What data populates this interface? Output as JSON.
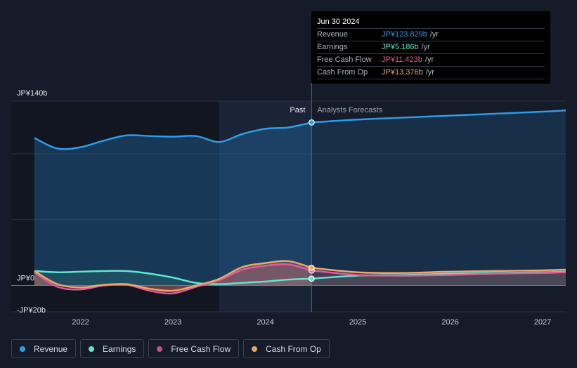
{
  "tooltip": {
    "date": "Jun 30 2024",
    "rows": [
      {
        "label": "Revenue",
        "value": "JP¥123.829b",
        "unit": "/yr",
        "color": "#2f9ce6"
      },
      {
        "label": "Earnings",
        "value": "JP¥5.186b",
        "unit": "/yr",
        "color": "#5ee6cf"
      },
      {
        "label": "Free Cash Flow",
        "value": "JP¥11.423b",
        "unit": "/yr",
        "color": "#e05b9b"
      },
      {
        "label": "Cash From Op",
        "value": "JP¥13.376b",
        "unit": "/yr",
        "color": "#eda862"
      }
    ]
  },
  "labels": {
    "past": "Past",
    "forecast": "Analysts Forecasts"
  },
  "legend": [
    {
      "label": "Revenue",
      "color": "#2f9ce6"
    },
    {
      "label": "Earnings",
      "color": "#5ee6cf"
    },
    {
      "label": "Free Cash Flow",
      "color": "#c94d8a"
    },
    {
      "label": "Cash From Op",
      "color": "#e8a25d"
    }
  ],
  "chart_data": {
    "type": "line",
    "ylim": [
      -20,
      140
    ],
    "y_ticks": [
      {
        "value": 140,
        "label": "JP¥140b"
      },
      {
        "value": 0,
        "label": "JP¥0"
      },
      {
        "value": -20,
        "label": "-JP¥20b"
      }
    ],
    "x_ticks": [
      {
        "value": 2022,
        "label": "2022"
      },
      {
        "value": 2023,
        "label": "2023"
      },
      {
        "value": 2024,
        "label": "2024"
      },
      {
        "value": 2025,
        "label": "2025"
      },
      {
        "value": 2026,
        "label": "2026"
      },
      {
        "value": 2027,
        "label": "2027"
      }
    ],
    "xlim": [
      2021.25,
      2027.25
    ],
    "past_end": 2024.5,
    "highlight_start": 2023.5,
    "series": [
      {
        "name": "Revenue",
        "color": "#2f9ce6",
        "points": [
          [
            2021.5,
            112
          ],
          [
            2021.75,
            104
          ],
          [
            2022.0,
            105
          ],
          [
            2022.25,
            110
          ],
          [
            2022.5,
            114
          ],
          [
            2022.75,
            113.5
          ],
          [
            2023.0,
            113
          ],
          [
            2023.25,
            113.5
          ],
          [
            2023.5,
            109
          ],
          [
            2023.75,
            115
          ],
          [
            2024.0,
            119
          ],
          [
            2024.25,
            120
          ],
          [
            2024.5,
            123.8
          ]
        ],
        "forecast": [
          [
            2024.5,
            123.8
          ],
          [
            2025.0,
            126
          ],
          [
            2025.5,
            127.5
          ],
          [
            2026.0,
            129
          ],
          [
            2026.5,
            130.5
          ],
          [
            2027.0,
            132
          ],
          [
            2027.25,
            133
          ]
        ]
      },
      {
        "name": "Earnings",
        "color": "#5ee6cf",
        "points": [
          [
            2021.5,
            11
          ],
          [
            2021.75,
            10
          ],
          [
            2022.0,
            10.5
          ],
          [
            2022.25,
            11
          ],
          [
            2022.5,
            11
          ],
          [
            2022.75,
            9
          ],
          [
            2023.0,
            6
          ],
          [
            2023.25,
            2
          ],
          [
            2023.5,
            1
          ],
          [
            2023.75,
            2
          ],
          [
            2024.0,
            3
          ],
          [
            2024.25,
            4.5
          ],
          [
            2024.5,
            5.2
          ]
        ],
        "forecast": [
          [
            2024.5,
            5.2
          ],
          [
            2025.0,
            7.5
          ],
          [
            2025.5,
            8
          ],
          [
            2026.0,
            9
          ],
          [
            2026.5,
            9.5
          ],
          [
            2027.0,
            10
          ],
          [
            2027.25,
            10.5
          ]
        ]
      },
      {
        "name": "Free Cash Flow",
        "color": "#e05b9b",
        "points": [
          [
            2021.5,
            10
          ],
          [
            2021.75,
            -1
          ],
          [
            2022.0,
            -3
          ],
          [
            2022.25,
            0
          ],
          [
            2022.5,
            0.5
          ],
          [
            2022.75,
            -4
          ],
          [
            2023.0,
            -6
          ],
          [
            2023.25,
            -1
          ],
          [
            2023.5,
            4
          ],
          [
            2023.75,
            12
          ],
          [
            2024.0,
            15
          ],
          [
            2024.25,
            16
          ],
          [
            2024.5,
            11.4
          ]
        ],
        "forecast": [
          [
            2024.5,
            11.4
          ],
          [
            2025.0,
            8
          ],
          [
            2025.5,
            7.5
          ],
          [
            2026.0,
            8
          ],
          [
            2026.5,
            9
          ],
          [
            2027.0,
            9.5
          ],
          [
            2027.25,
            10
          ]
        ]
      },
      {
        "name": "Cash From Op",
        "color": "#eda862",
        "points": [
          [
            2021.5,
            11
          ],
          [
            2021.75,
            1
          ],
          [
            2022.0,
            -1.5
          ],
          [
            2022.25,
            0.5
          ],
          [
            2022.5,
            1
          ],
          [
            2022.75,
            -2.5
          ],
          [
            2023.0,
            -4
          ],
          [
            2023.25,
            0
          ],
          [
            2023.5,
            5
          ],
          [
            2023.75,
            14
          ],
          [
            2024.0,
            17
          ],
          [
            2024.25,
            18.5
          ],
          [
            2024.5,
            13.4
          ]
        ],
        "forecast": [
          [
            2024.5,
            13.4
          ],
          [
            2025.0,
            10
          ],
          [
            2025.5,
            9.5
          ],
          [
            2026.0,
            10.5
          ],
          [
            2026.5,
            11
          ],
          [
            2027.0,
            11.5
          ],
          [
            2027.25,
            12
          ]
        ]
      }
    ]
  }
}
